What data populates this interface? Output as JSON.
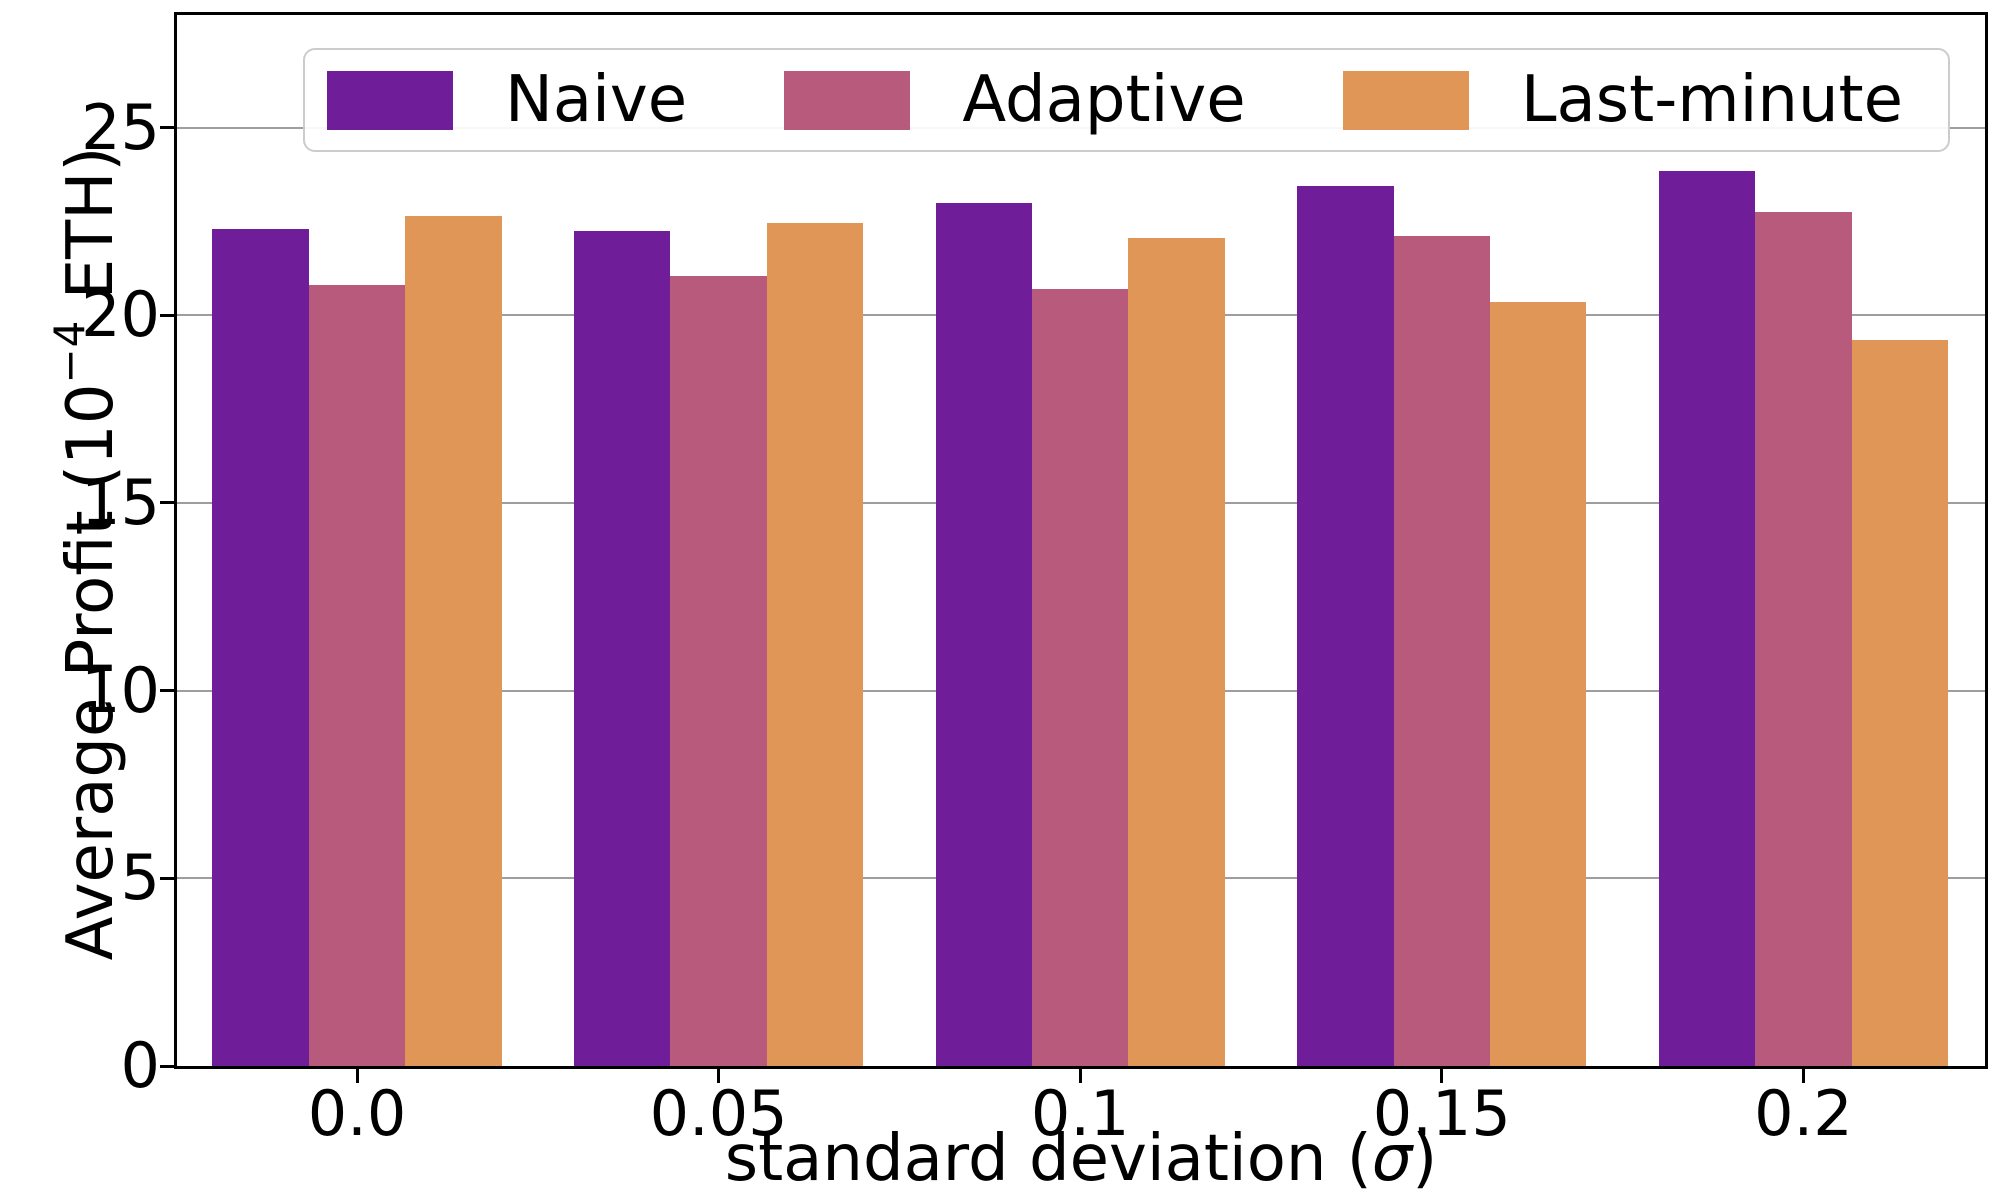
{
  "figure": {
    "background": "#ffffff"
  },
  "axes": {
    "ylabel_prefix": "Average Profit (10",
    "ylabel_sup": "−4",
    "ylabel_suffix": " ETH)",
    "xlabel_prefix": "standard deviation (",
    "xlabel_sigma": "σ",
    "xlabel_suffix": ")",
    "ytick_labels": [
      "0",
      "5",
      "10",
      "15",
      "20",
      "25"
    ],
    "ytick_values": [
      0,
      5,
      10,
      15,
      20,
      25
    ],
    "grid_values": [
      5,
      10,
      15,
      20,
      25
    ],
    "xtick_labels": [
      "0.0",
      "0.05",
      "0.1",
      "0.15",
      "0.2"
    ],
    "grid_color": "#9e9e9e",
    "spine_color": "#000000"
  },
  "legend": {
    "items": [
      {
        "label": "Naive",
        "color": "#701d9a"
      },
      {
        "label": "Adaptive",
        "color": "#b85a7b"
      },
      {
        "label": "Last-minute",
        "color": "#e09657"
      }
    ]
  },
  "chart_data": {
    "type": "bar",
    "categories": [
      "0.0",
      "0.05",
      "0.1",
      "0.15",
      "0.2"
    ],
    "series": [
      {
        "name": "Naive",
        "color": "#701d9a",
        "values": [
          22.3,
          22.25,
          23.0,
          23.45,
          23.85
        ]
      },
      {
        "name": "Adaptive",
        "color": "#b85a7b",
        "values": [
          20.8,
          21.05,
          20.7,
          22.1,
          22.75
        ]
      },
      {
        "name": "Last-minute",
        "color": "#e09657",
        "values": [
          22.65,
          22.45,
          22.05,
          20.35,
          19.35
        ]
      }
    ],
    "title": "",
    "xlabel": "standard deviation (σ)",
    "ylabel": "Average Profit (10⁻⁴ ETH)",
    "ylim": [
      0,
      28
    ],
    "grid": "horizontal",
    "legend_position": "upper center",
    "bar_group_width_fraction": 0.8
  }
}
